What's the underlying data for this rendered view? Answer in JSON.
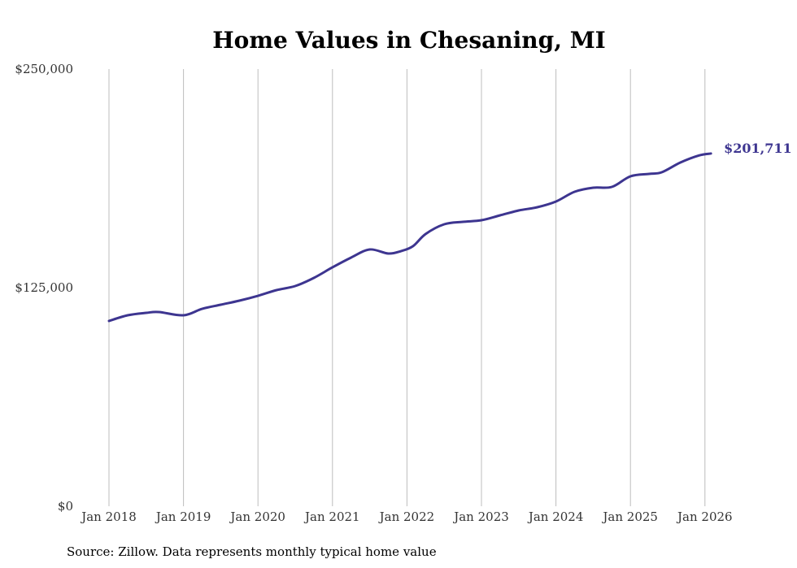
{
  "chart_data": {
    "type": "line",
    "title": "Home Values in Chesaning, MI",
    "source": "Source: Zillow. Data represents monthly typical home value",
    "xlabel": "",
    "ylabel": "",
    "ylim": [
      0,
      250000
    ],
    "xlim": [
      2018,
      2026.1
    ],
    "yticks": [
      {
        "value": 0,
        "label": "$0"
      },
      {
        "value": 125000,
        "label": "$125,000"
      },
      {
        "value": 250000,
        "label": "$250,000"
      }
    ],
    "xticks": [
      {
        "value": 2018,
        "label": "Jan 2018"
      },
      {
        "value": 2019,
        "label": "Jan 2019"
      },
      {
        "value": 2020,
        "label": "Jan 2020"
      },
      {
        "value": 2021,
        "label": "Jan 2021"
      },
      {
        "value": 2022,
        "label": "Jan 2022"
      },
      {
        "value": 2023,
        "label": "Jan 2023"
      },
      {
        "value": 2024,
        "label": "Jan 2024"
      },
      {
        "value": 2025,
        "label": "Jan 2025"
      },
      {
        "value": 2026,
        "label": "Jan 2026"
      }
    ],
    "grid": "vertical",
    "line_color": "#3d3590",
    "end_label": "$201,711",
    "series": [
      {
        "name": "Typical home value",
        "x": [
          2018,
          2018.25,
          2018.5,
          2018.67,
          2019,
          2019.25,
          2019.5,
          2019.75,
          2020,
          2020.25,
          2020.5,
          2020.75,
          2021,
          2021.25,
          2021.5,
          2021.75,
          2021.92,
          2022.08,
          2022.25,
          2022.5,
          2022.75,
          2023,
          2023.25,
          2023.5,
          2023.75,
          2024,
          2024.25,
          2024.5,
          2024.75,
          2025,
          2025.25,
          2025.42,
          2025.67,
          2025.92,
          2026.08
        ],
        "values": [
          105950,
          109200,
          110600,
          111060,
          109200,
          112900,
          115240,
          117570,
          120350,
          123600,
          125930,
          130580,
          136620,
          142200,
          146840,
          144520,
          145900,
          148700,
          155670,
          161240,
          162640,
          163570,
          166360,
          169140,
          171000,
          174260,
          179830,
          182150,
          182620,
          188660,
          190050,
          190980,
          196560,
          200600,
          201711
        ]
      }
    ]
  }
}
